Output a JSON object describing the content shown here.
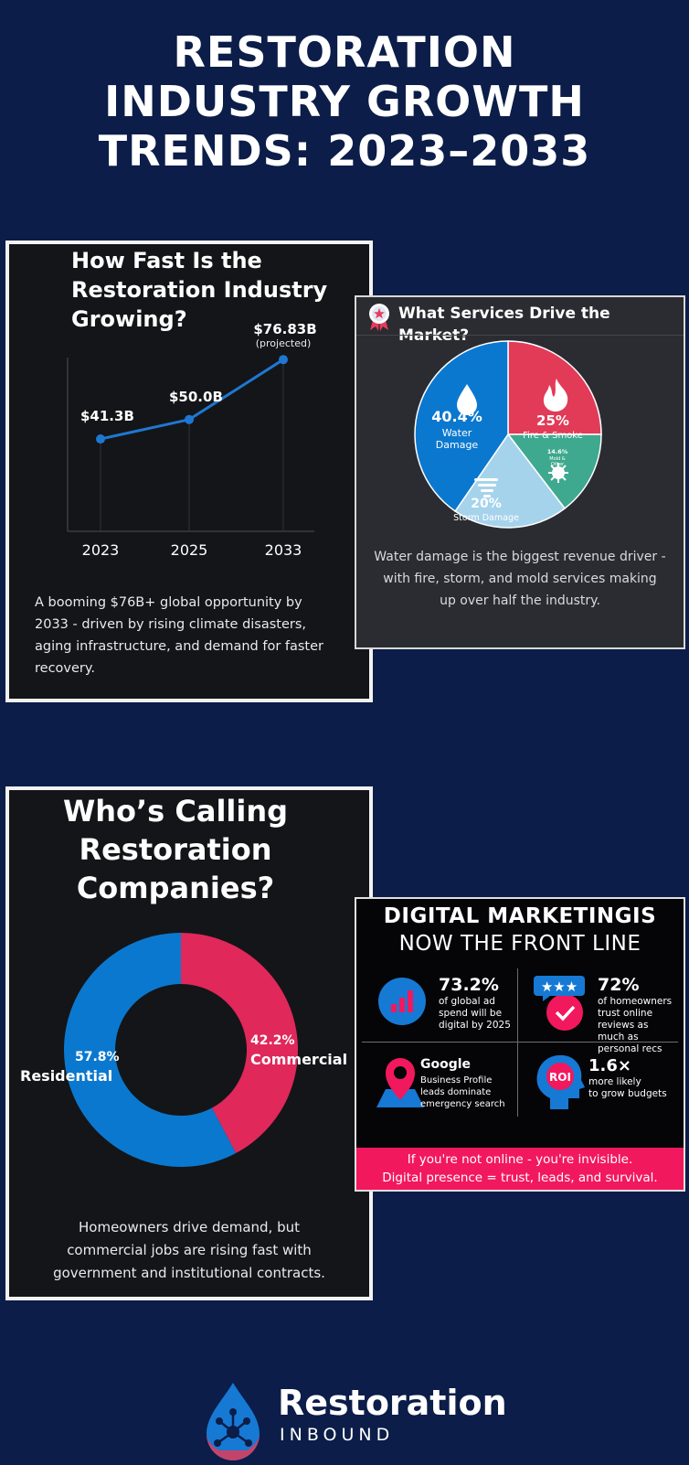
{
  "title_lines": [
    "RESTORATION",
    "INDUSTRY GROWTH",
    "TRENDS: 2023–2033"
  ],
  "colors": {
    "background": "#0b1d48",
    "blue": "#0b78cf",
    "red": "#e23b57",
    "teal": "#3ea98e",
    "light_blue": "#a6d3ec",
    "pink": "#f2185e"
  },
  "chart_data": [
    {
      "type": "line",
      "title_lines": [
        "How Fast Is the",
        "Restoration Industry",
        "Growing?"
      ],
      "x": [
        "2023",
        "2025",
        "2033"
      ],
      "y": [
        41.3,
        50.0,
        76.83
      ],
      "data_labels": [
        "$41.3B",
        "$50.0B",
        "$76.83B"
      ],
      "note": "(projected)",
      "ylim": [
        0,
        90
      ],
      "grid": false,
      "caption_lines": [
        "A booming $76B+ global opportunity by",
        "2033 - driven by rising climate disasters,",
        "aging infrastructure, and demand for faster",
        "recovery."
      ]
    },
    {
      "type": "pie",
      "title": "What Services Drive the Market?",
      "slices": [
        {
          "label_lines": [
            "Water",
            "Damage"
          ],
          "value": 40.4,
          "display": "40.4%",
          "color": "#0b78cf",
          "icon": "water-drop-icon"
        },
        {
          "label_lines": [
            "Fire & Smoke"
          ],
          "value": 25,
          "display": "25%",
          "color": "#e23b57",
          "icon": "flame-icon"
        },
        {
          "label_lines": [
            "Mold &",
            "Other"
          ],
          "value": 14.6,
          "display": "14.6%",
          "color": "#3ea98e",
          "icon": "virus-icon"
        },
        {
          "label_lines": [
            "Storm Damage"
          ],
          "value": 20,
          "display": "20%",
          "color": "#a6d3ec",
          "icon": "tornado-icon"
        }
      ],
      "caption_lines": [
        "Water damage is the biggest revenue driver -",
        "with fire, storm, and mold services making",
        "up over half the industry."
      ]
    },
    {
      "type": "pie",
      "subtype": "donut",
      "title_lines": [
        "Who’s Calling",
        "Restoration",
        "Companies?"
      ],
      "slices": [
        {
          "label": "Residential",
          "value": 57.8,
          "display": "57.8%",
          "color": "#0b78cf"
        },
        {
          "label": "Commercial",
          "value": 42.2,
          "display": "42.2%",
          "color": "#e0285a"
        }
      ],
      "caption_lines": [
        "Homeowners drive demand, but",
        "commercial jobs are rising fast with",
        "government and institutional contracts."
      ]
    }
  ],
  "digital": {
    "title_line1": "DIGITAL MARKETINGIS",
    "title_line2": "NOW THE FRONT LINE",
    "stats": [
      {
        "value": "73.2%",
        "lines": [
          "of global ad",
          "spend will be",
          "digital by 2025"
        ],
        "icon": "bar-chart-icon"
      },
      {
        "value": "72%",
        "lines": [
          "of homeowners",
          "trust online",
          "reviews as",
          "much as",
          "personal recs"
        ],
        "icon": "review-stars-icon"
      },
      {
        "value": "Google",
        "lines": [
          "Business Profile",
          "leads dominate",
          "emergency search"
        ],
        "icon": "map-pin-icon"
      },
      {
        "value": "1.6×",
        "lines": [
          "more likely",
          "to grow budgets"
        ],
        "icon": "roi-head-icon",
        "icon_text": "ROI"
      }
    ],
    "banner_line1": "If you're not online - you're invisible.",
    "banner_line2": "Digital presence = trust, leads, and survival."
  },
  "brand": {
    "name": "Restoration",
    "sub": "INBOUND"
  }
}
